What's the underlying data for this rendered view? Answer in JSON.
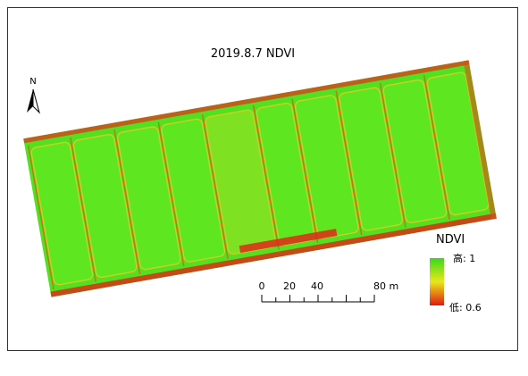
{
  "title": "2019.8.7 NDVI",
  "north_arrow": {
    "label": "N"
  },
  "legend": {
    "title": "NDVI",
    "high": "高: 1",
    "low": "低: 0.6"
  },
  "scale_bar": {
    "labels": [
      "0",
      "20",
      "40",
      "80 m"
    ]
  }
}
